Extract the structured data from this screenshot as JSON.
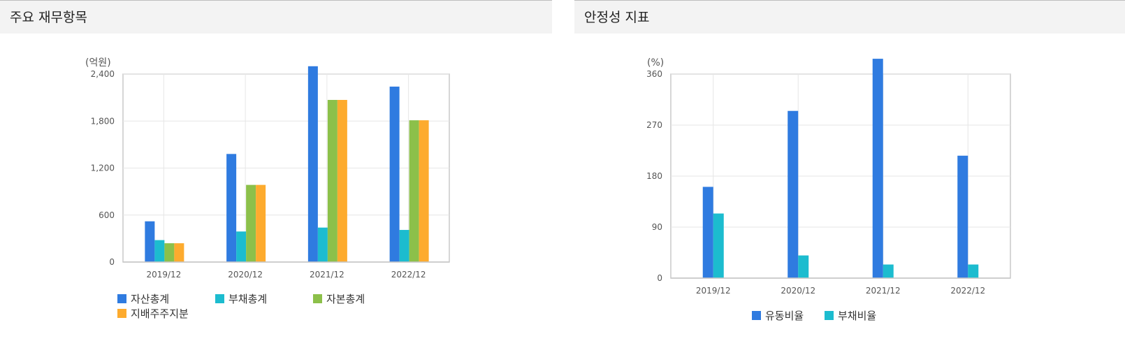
{
  "left_panel": {
    "title": "주요 재무항목",
    "chart_data": {
      "type": "bar",
      "unit_label": "(억원)",
      "categories": [
        "2019/12",
        "2020/12",
        "2021/12",
        "2022/12"
      ],
      "y_ticks": [
        "0",
        "600",
        "1,200",
        "1,800",
        "2,400"
      ],
      "ylim": [
        0,
        2400
      ],
      "grid": true,
      "legend_position": "bottom-left",
      "series": [
        {
          "name": "자산총계",
          "color": "#2f7be0",
          "values": [
            520,
            1380,
            2500,
            2240
          ]
        },
        {
          "name": "부채총계",
          "color": "#1cbccf",
          "values": [
            280,
            390,
            440,
            410
          ]
        },
        {
          "name": "자본총계",
          "color": "#8cc04a",
          "values": [
            240,
            985,
            2070,
            1810
          ]
        },
        {
          "name": "지배주주지분",
          "color": "#fdab2e",
          "values": [
            240,
            985,
            2070,
            1810
          ]
        }
      ]
    }
  },
  "right_panel": {
    "title": "안정성 지표",
    "chart_data": {
      "type": "bar",
      "unit_label": "(%)",
      "categories": [
        "2019/12",
        "2020/12",
        "2021/12",
        "2022/12"
      ],
      "y_ticks": [
        "0",
        "90",
        "180",
        "270",
        "360"
      ],
      "ylim": [
        0,
        360
      ],
      "grid": true,
      "legend_position": "bottom-center",
      "series": [
        {
          "name": "유동비율",
          "color": "#2f7be0",
          "values": [
            161,
            295,
            387,
            216
          ]
        },
        {
          "name": "부채비율",
          "color": "#1cbccf",
          "values": [
            114,
            40,
            24,
            24
          ]
        }
      ]
    }
  }
}
